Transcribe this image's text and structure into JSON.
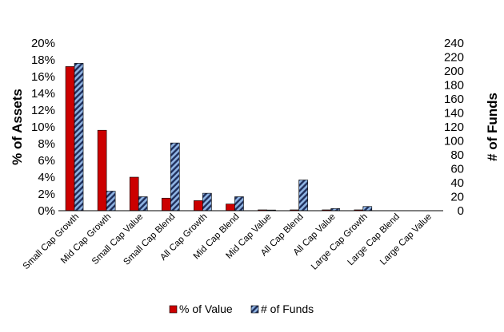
{
  "chart_data": {
    "type": "bar",
    "title": "",
    "xlabel": "",
    "ylabel": "% of Assets",
    "y2label": "# of Funds",
    "ylim": [
      0,
      20
    ],
    "y2lim": [
      0,
      240
    ],
    "yticks": [
      "0%",
      "2%",
      "4%",
      "6%",
      "8%",
      "10%",
      "12%",
      "14%",
      "16%",
      "18%",
      "20%"
    ],
    "y2ticks": [
      "0",
      "20",
      "40",
      "60",
      "80",
      "100",
      "120",
      "140",
      "160",
      "180",
      "200",
      "220",
      "240"
    ],
    "categories": [
      "Small Cap Growth",
      "Mid Cap Growth",
      "Small Cap Value",
      "Small Cap Blend",
      "All Cap Growth",
      "Mid Cap Blend",
      "Mid Cap Value",
      "All Cap Blend",
      "All Cap Value",
      "Large Cap Growth",
      "Large Cap Blend",
      "Large Cap Value"
    ],
    "series": [
      {
        "name": "% of Value",
        "axis": "left",
        "color": "#cc0000",
        "values": [
          17.2,
          9.6,
          4.0,
          1.5,
          1.2,
          0.8,
          0.1,
          0.1,
          0.1,
          0.1,
          0.0,
          0.0
        ]
      },
      {
        "name": "# of Funds",
        "axis": "right",
        "color": "#5b9bd5",
        "pattern": "diagonal-stripes",
        "values": [
          211,
          28,
          20,
          97,
          25,
          20,
          1,
          44,
          3,
          6,
          0,
          0
        ]
      }
    ],
    "grid": false,
    "legend": "bottom"
  }
}
